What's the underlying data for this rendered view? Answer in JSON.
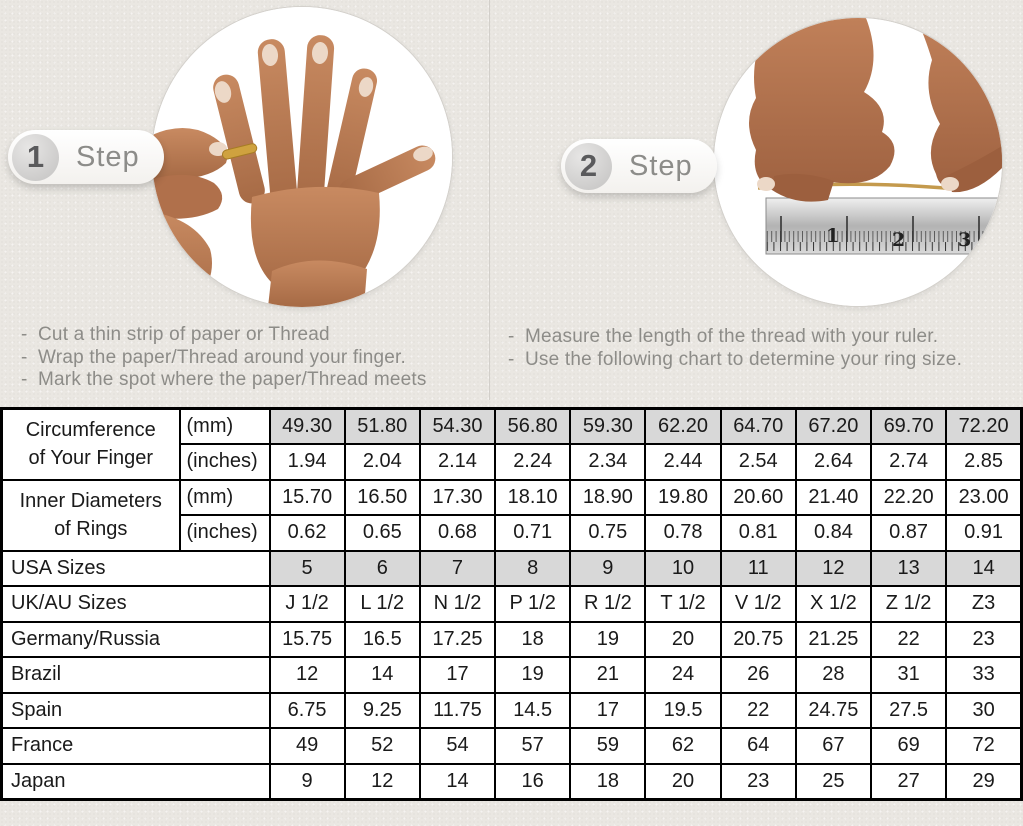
{
  "page": {
    "background_color": "#eae7e2"
  },
  "colors": {
    "table_shaded_cell": "#d8d8d8",
    "table_border": "#000000",
    "step_label_text": "#8c8c89",
    "instruction_text": "#8d8c88",
    "badge_number_text": "#5a5a5c",
    "ring_gold": "#cfa23f",
    "thread_gold": "#c49a4d",
    "skin_tone": "#b5744e"
  },
  "steps": [
    {
      "number": "1",
      "label": "Step",
      "instructions": [
        "Cut a thin strip of paper or Thread",
        "Wrap the paper/Thread around your finger.",
        "Mark the spot where the paper/Thread meets"
      ]
    },
    {
      "number": "2",
      "label": "Step",
      "instructions": [
        "Measure the length of the thread with your ruler.",
        "Use the following chart to determine your ring size."
      ]
    }
  ],
  "illustrations": {
    "step1_icon": "hand-with-ring-photo",
    "step2_icon": "measuring-thread-with-ruler-photo",
    "ruler_marks": [
      "1",
      "2",
      "3"
    ]
  },
  "table": {
    "groups": [
      {
        "label": "Circumference\nof Your Finger",
        "rows": [
          {
            "unit": "(mm)",
            "shaded": true,
            "values": [
              "49.30",
              "51.80",
              "54.30",
              "56.80",
              "59.30",
              "62.20",
              "64.70",
              "67.20",
              "69.70",
              "72.20"
            ]
          },
          {
            "unit": "(inches)",
            "shaded": false,
            "values": [
              "1.94",
              "2.04",
              "2.14",
              "2.24",
              "2.34",
              "2.44",
              "2.54",
              "2.64",
              "2.74",
              "2.85"
            ]
          }
        ]
      },
      {
        "label": "Inner Diameters\nof Rings",
        "rows": [
          {
            "unit": "(mm)",
            "shaded": false,
            "values": [
              "15.70",
              "16.50",
              "17.30",
              "18.10",
              "18.90",
              "19.80",
              "20.60",
              "21.40",
              "22.20",
              "23.00"
            ]
          },
          {
            "unit": "(inches)",
            "shaded": false,
            "values": [
              "0.62",
              "0.65",
              "0.68",
              "0.71",
              "0.75",
              "0.78",
              "0.81",
              "0.84",
              "0.87",
              "0.91"
            ]
          }
        ]
      }
    ],
    "simple_rows": [
      {
        "label": "USA Sizes",
        "shaded": true,
        "values": [
          "5",
          "6",
          "7",
          "8",
          "9",
          "10",
          "11",
          "12",
          "13",
          "14"
        ]
      },
      {
        "label": "UK/AU Sizes",
        "shaded": false,
        "values": [
          "J 1/2",
          "L 1/2",
          "N 1/2",
          "P 1/2",
          "R 1/2",
          "T 1/2",
          "V 1/2",
          "X 1/2",
          "Z 1/2",
          "Z3"
        ]
      },
      {
        "label": "Germany/Russia",
        "shaded": false,
        "values": [
          "15.75",
          "16.5",
          "17.25",
          "18",
          "19",
          "20",
          "20.75",
          "21.25",
          "22",
          "23"
        ]
      },
      {
        "label": "Brazil",
        "shaded": false,
        "values": [
          "12",
          "14",
          "17",
          "19",
          "21",
          "24",
          "26",
          "28",
          "31",
          "33"
        ]
      },
      {
        "label": "Spain",
        "shaded": false,
        "values": [
          "6.75",
          "9.25",
          "11.75",
          "14.5",
          "17",
          "19.5",
          "22",
          "24.75",
          "27.5",
          "30"
        ]
      },
      {
        "label": "France",
        "shaded": false,
        "values": [
          "49",
          "52",
          "54",
          "57",
          "59",
          "62",
          "64",
          "67",
          "69",
          "72"
        ]
      },
      {
        "label": "Japan",
        "shaded": false,
        "values": [
          "9",
          "12",
          "14",
          "16",
          "18",
          "20",
          "23",
          "25",
          "27",
          "29"
        ]
      }
    ]
  }
}
